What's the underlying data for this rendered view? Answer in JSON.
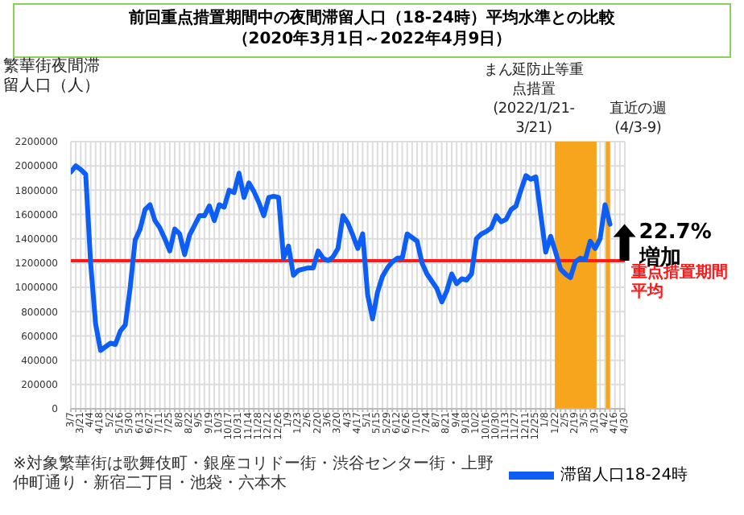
{
  "chart_data": {
    "type": "line",
    "title": "前回重点措置期間中の夜間滞留人口（18-24時）平均水準との比較",
    "subtitle": "（2020年3月1日～2022年4月9日）",
    "ylabel": "繁華街夜間滞留人口（人）",
    "x": [
      "2020-03-07",
      "2020-03-14",
      "2020-03-21",
      "2020-03-28",
      "2020-04-04",
      "2020-04-11",
      "2020-04-18",
      "2020-04-25",
      "2020-05-02",
      "2020-05-09",
      "2020-05-16",
      "2020-05-23",
      "2020-05-30",
      "2020-06-06",
      "2020-06-13",
      "2020-06-20",
      "2020-06-27",
      "2020-07-04",
      "2020-07-11",
      "2020-07-18",
      "2020-07-25",
      "2020-08-01",
      "2020-08-08",
      "2020-08-15",
      "2020-08-22",
      "2020-08-29",
      "2020-09-05",
      "2020-09-12",
      "2020-09-19",
      "2020-09-26",
      "2020-10-03",
      "2020-10-10",
      "2020-10-17",
      "2020-10-24",
      "2020-10-31",
      "2020-11-07",
      "2020-11-14",
      "2020-11-21",
      "2020-11-28",
      "2020-12-05",
      "2020-12-12",
      "2020-12-19",
      "2020-12-26",
      "2021-01-02",
      "2021-01-09",
      "2021-01-16",
      "2021-01-23",
      "2021-01-30",
      "2021-02-06",
      "2021-02-13",
      "2021-02-20",
      "2021-02-27",
      "2021-03-06",
      "2021-03-13",
      "2021-03-20",
      "2021-03-27",
      "2021-04-03",
      "2021-04-10",
      "2021-04-17",
      "2021-04-24",
      "2021-05-01",
      "2021-05-08",
      "2021-05-15",
      "2021-05-22",
      "2021-05-29",
      "2021-06-05",
      "2021-06-12",
      "2021-06-19",
      "2021-06-26",
      "2021-07-03",
      "2021-07-10",
      "2021-07-17",
      "2021-07-24",
      "2021-07-31",
      "2021-08-07",
      "2021-08-14",
      "2021-08-21",
      "2021-08-28",
      "2021-09-04",
      "2021-09-11",
      "2021-09-18",
      "2021-09-25",
      "2021-10-02",
      "2021-10-09",
      "2021-10-16",
      "2021-10-23",
      "2021-10-30",
      "2021-11-06",
      "2021-11-13",
      "2021-11-20",
      "2021-11-27",
      "2021-12-04",
      "2021-12-11",
      "2021-12-18",
      "2021-12-25",
      "2022-01-01",
      "2022-01-08",
      "2022-01-15",
      "2022-01-22",
      "2022-01-29",
      "2022-02-05",
      "2022-02-12",
      "2022-02-19",
      "2022-02-26",
      "2022-03-05",
      "2022-03-12",
      "2022-03-19",
      "2022-03-26",
      "2022-04-02",
      "2022-04-09"
    ],
    "series": [
      {
        "name": "滞留人口18-24時",
        "color": "#0d5ef5",
        "values": [
          1950000,
          2000000,
          1970000,
          1930000,
          1200000,
          700000,
          480000,
          510000,
          540000,
          530000,
          640000,
          690000,
          1000000,
          1390000,
          1480000,
          1640000,
          1680000,
          1550000,
          1490000,
          1400000,
          1300000,
          1480000,
          1440000,
          1270000,
          1430000,
          1510000,
          1590000,
          1590000,
          1670000,
          1550000,
          1680000,
          1660000,
          1800000,
          1780000,
          1940000,
          1740000,
          1860000,
          1790000,
          1700000,
          1590000,
          1740000,
          1750000,
          1740000,
          1240000,
          1340000,
          1100000,
          1140000,
          1150000,
          1160000,
          1160000,
          1300000,
          1240000,
          1220000,
          1250000,
          1320000,
          1590000,
          1530000,
          1430000,
          1320000,
          1440000,
          940000,
          740000,
          960000,
          1090000,
          1160000,
          1210000,
          1240000,
          1240000,
          1440000,
          1410000,
          1380000,
          1200000,
          1110000,
          1050000,
          990000,
          880000,
          970000,
          1110000,
          1030000,
          1070000,
          1060000,
          1110000,
          1400000,
          1440000,
          1460000,
          1490000,
          1590000,
          1540000,
          1560000,
          1640000,
          1670000,
          1800000,
          1920000,
          1890000,
          1910000,
          1600000,
          1290000,
          1420000,
          1290000,
          1150000,
          1110000,
          1080000,
          1210000,
          1240000,
          1230000,
          1380000,
          1320000,
          1400000,
          1680000,
          1520000
        ]
      }
    ],
    "xlim": [
      "2020-03-07",
      "2022-04-30"
    ],
    "xticks": [
      {
        "value": "2020-03-07",
        "label": "3/7"
      },
      {
        "value": "2020-03-14",
        "label": null
      },
      {
        "value": "2020-03-21",
        "label": "3/21"
      },
      {
        "value": "2020-03-28",
        "label": null
      },
      {
        "value": "2020-04-04",
        "label": "4/4"
      },
      {
        "value": "2020-04-11",
        "label": null
      },
      {
        "value": "2020-04-18",
        "label": "4/18"
      },
      {
        "value": "2020-04-25",
        "label": null
      },
      {
        "value": "2020-05-02",
        "label": "5/2"
      },
      {
        "value": "2020-05-09",
        "label": null
      },
      {
        "value": "2020-05-16",
        "label": "5/16"
      },
      {
        "value": "2020-05-23",
        "label": null
      },
      {
        "value": "2020-05-30",
        "label": "5/30"
      },
      {
        "value": "2020-06-06",
        "label": null
      },
      {
        "value": "2020-06-13",
        "label": "6/13"
      },
      {
        "value": "2020-06-20",
        "label": null
      },
      {
        "value": "2020-06-27",
        "label": "6/27"
      },
      {
        "value": "2020-07-04",
        "label": null
      },
      {
        "value": "2020-07-11",
        "label": "7/11"
      },
      {
        "value": "2020-07-18",
        "label": null
      },
      {
        "value": "2020-07-25",
        "label": "7/25"
      },
      {
        "value": "2020-08-01",
        "label": null
      },
      {
        "value": "2020-08-08",
        "label": "8/8"
      },
      {
        "value": "2020-08-15",
        "label": null
      },
      {
        "value": "2020-08-22",
        "label": "8/22"
      },
      {
        "value": "2020-08-29",
        "label": null
      },
      {
        "value": "2020-09-05",
        "label": "9/5"
      },
      {
        "value": "2020-09-12",
        "label": null
      },
      {
        "value": "2020-09-19",
        "label": "9/19"
      },
      {
        "value": "2020-09-26",
        "label": null
      },
      {
        "value": "2020-10-03",
        "label": "10/3"
      },
      {
        "value": "2020-10-10",
        "label": null
      },
      {
        "value": "2020-10-17",
        "label": "10/17"
      },
      {
        "value": "2020-10-24",
        "label": null
      },
      {
        "value": "2020-10-31",
        "label": "10/31"
      },
      {
        "value": "2020-11-07",
        "label": null
      },
      {
        "value": "2020-11-14",
        "label": "11/14"
      },
      {
        "value": "2020-11-21",
        "label": null
      },
      {
        "value": "2020-11-28",
        "label": "11/28"
      },
      {
        "value": "2020-12-05",
        "label": null
      },
      {
        "value": "2020-12-12",
        "label": "12/12"
      },
      {
        "value": "2020-12-19",
        "label": null
      },
      {
        "value": "2020-12-26",
        "label": "12/26"
      },
      {
        "value": "2021-01-02",
        "label": null
      },
      {
        "value": "2021-01-09",
        "label": "1/9"
      },
      {
        "value": "2021-01-16",
        "label": null
      },
      {
        "value": "2021-01-23",
        "label": "1/23"
      },
      {
        "value": "2021-01-30",
        "label": null
      },
      {
        "value": "2021-02-06",
        "label": "2/6"
      },
      {
        "value": "2021-02-13",
        "label": null
      },
      {
        "value": "2021-02-20",
        "label": "2/20"
      },
      {
        "value": "2021-02-27",
        "label": null
      },
      {
        "value": "2021-03-06",
        "label": "3/6"
      },
      {
        "value": "2021-03-13",
        "label": null
      },
      {
        "value": "2021-03-20",
        "label": "3/20"
      },
      {
        "value": "2021-03-27",
        "label": null
      },
      {
        "value": "2021-04-03",
        "label": "4/3"
      },
      {
        "value": "2021-04-10",
        "label": null
      },
      {
        "value": "2021-04-17",
        "label": "4/17"
      },
      {
        "value": "2021-04-24",
        "label": null
      },
      {
        "value": "2021-05-01",
        "label": "5/1"
      },
      {
        "value": "2021-05-08",
        "label": null
      },
      {
        "value": "2021-05-15",
        "label": "5/15"
      },
      {
        "value": "2021-05-22",
        "label": null
      },
      {
        "value": "2021-05-29",
        "label": "5/29"
      },
      {
        "value": "2021-06-05",
        "label": null
      },
      {
        "value": "2021-06-12",
        "label": "6/12"
      },
      {
        "value": "2021-06-19",
        "label": null
      },
      {
        "value": "2021-06-26",
        "label": "6/26"
      },
      {
        "value": "2021-07-03",
        "label": null
      },
      {
        "value": "2021-07-10",
        "label": "7/10"
      },
      {
        "value": "2021-07-17",
        "label": null
      },
      {
        "value": "2021-07-24",
        "label": "7/24"
      },
      {
        "value": "2021-07-31",
        "label": null
      },
      {
        "value": "2021-08-07",
        "label": "8/7"
      },
      {
        "value": "2021-08-14",
        "label": null
      },
      {
        "value": "2021-08-21",
        "label": "8/21"
      },
      {
        "value": "2021-08-28",
        "label": null
      },
      {
        "value": "2021-09-04",
        "label": "9/4"
      },
      {
        "value": "2021-09-11",
        "label": null
      },
      {
        "value": "2021-09-18",
        "label": "9/18"
      },
      {
        "value": "2021-09-25",
        "label": null
      },
      {
        "value": "2021-10-02",
        "label": "10/2"
      },
      {
        "value": "2021-10-09",
        "label": null
      },
      {
        "value": "2021-10-16",
        "label": "10/16"
      },
      {
        "value": "2021-10-23",
        "label": null
      },
      {
        "value": "2021-10-30",
        "label": "10/30"
      },
      {
        "value": "2021-11-06",
        "label": null
      },
      {
        "value": "2021-11-13",
        "label": "11/13"
      },
      {
        "value": "2021-11-20",
        "label": null
      },
      {
        "value": "2021-11-27",
        "label": "11/27"
      },
      {
        "value": "2021-12-04",
        "label": null
      },
      {
        "value": "2021-12-11",
        "label": "12/11"
      },
      {
        "value": "2021-12-18",
        "label": null
      },
      {
        "value": "2021-12-25",
        "label": "12/25"
      },
      {
        "value": "2022-01-01",
        "label": null
      },
      {
        "value": "2022-01-08",
        "label": "1/8"
      },
      {
        "value": "2022-01-15",
        "label": null
      },
      {
        "value": "2022-01-22",
        "label": "1/22"
      },
      {
        "value": "2022-01-29",
        "label": null
      },
      {
        "value": "2022-02-05",
        "label": "2/5"
      },
      {
        "value": "2022-02-12",
        "label": null
      },
      {
        "value": "2022-02-19",
        "label": "2/19"
      },
      {
        "value": "2022-02-26",
        "label": null
      },
      {
        "value": "2022-03-05",
        "label": "3/5"
      },
      {
        "value": "2022-03-12",
        "label": null
      },
      {
        "value": "2022-03-19",
        "label": "3/19"
      },
      {
        "value": "2022-03-26",
        "label": null
      },
      {
        "value": "2022-04-02",
        "label": "4/2"
      },
      {
        "value": "2022-04-09",
        "label": null
      },
      {
        "value": "2022-04-16",
        "label": "4/16"
      },
      {
        "value": "2022-04-23",
        "label": null
      },
      {
        "value": "2022-04-30",
        "label": "4/30"
      }
    ],
    "ylim": [
      0,
      2200000
    ],
    "yticks": [
      0,
      200000,
      400000,
      600000,
      800000,
      1000000,
      1200000,
      1400000,
      1600000,
      1800000,
      2000000,
      2200000
    ],
    "grid": true,
    "legend": "bottom",
    "marker": "none",
    "line_style": "solid",
    "ref_lines": [
      {
        "axis": "y",
        "value": 1220000,
        "label": "重点措置期間平均",
        "color": "#ff1a1a"
      }
    ],
    "bands": [
      {
        "axis": "x",
        "from": "2022-01-21",
        "to": "2022-03-21",
        "label": "まん延防止等重点措置(2022/1/21-3/21)",
        "color": "#f7a51c"
      },
      {
        "axis": "x",
        "from": "2022-04-03",
        "to": "2022-04-09",
        "label": "直近の週(4/3-9)",
        "color": "#f7a51c"
      }
    ],
    "annotations": [
      {
        "text": "22.7%増加",
        "x": "2022-04-09",
        "y": 1520000
      },
      "※対象繁華街は歌舞伎町・銀座コリドー街・渋谷センター街・上野仲町通り・新宿二丁目・池袋・六本木"
    ]
  }
}
